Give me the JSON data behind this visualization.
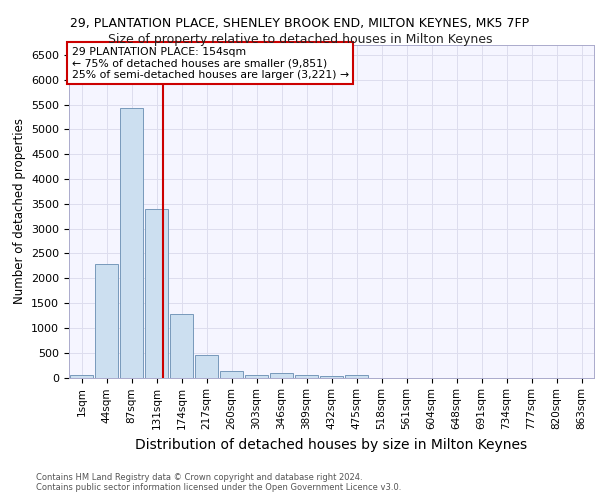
{
  "title1": "29, PLANTATION PLACE, SHENLEY BROOK END, MILTON KEYNES, MK5 7FP",
  "title2": "Size of property relative to detached houses in Milton Keynes",
  "xlabel": "Distribution of detached houses by size in Milton Keynes",
  "ylabel": "Number of detached properties",
  "annotation_line1": "29 PLANTATION PLACE: 154sqm",
  "annotation_line2": "← 75% of detached houses are smaller (9,851)",
  "annotation_line3": "25% of semi-detached houses are larger (3,221) →",
  "footer1": "Contains HM Land Registry data © Crown copyright and database right 2024.",
  "footer2": "Contains public sector information licensed under the Open Government Licence v3.0.",
  "bin_labels": [
    "1sqm",
    "44sqm",
    "87sqm",
    "131sqm",
    "174sqm",
    "217sqm",
    "260sqm",
    "303sqm",
    "346sqm",
    "389sqm",
    "432sqm",
    "475sqm",
    "518sqm",
    "561sqm",
    "604sqm",
    "648sqm",
    "691sqm",
    "734sqm",
    "777sqm",
    "820sqm",
    "863sqm"
  ],
  "bin_values": [
    55,
    2280,
    5430,
    3390,
    1270,
    460,
    130,
    55,
    90,
    45,
    25,
    55,
    0,
    0,
    0,
    0,
    0,
    0,
    0,
    0,
    0
  ],
  "bar_color": "#ccdff0",
  "bar_edge_color": "#7799bb",
  "vline_color": "#cc0000",
  "vline_x_bin": 3.27,
  "ylim": [
    0,
    6700
  ],
  "yticks": [
    0,
    500,
    1000,
    1500,
    2000,
    2500,
    3000,
    3500,
    4000,
    4500,
    5000,
    5500,
    6000,
    6500
  ],
  "bg_color": "#f5f5ff",
  "grid_color": "#ddddee",
  "annotation_box_color": "#cc0000",
  "title1_fontsize": 9,
  "title2_fontsize": 9,
  "xlabel_fontsize": 10,
  "ylabel_fontsize": 8.5,
  "tick_fontsize": 7.5,
  "ytick_fontsize": 8
}
